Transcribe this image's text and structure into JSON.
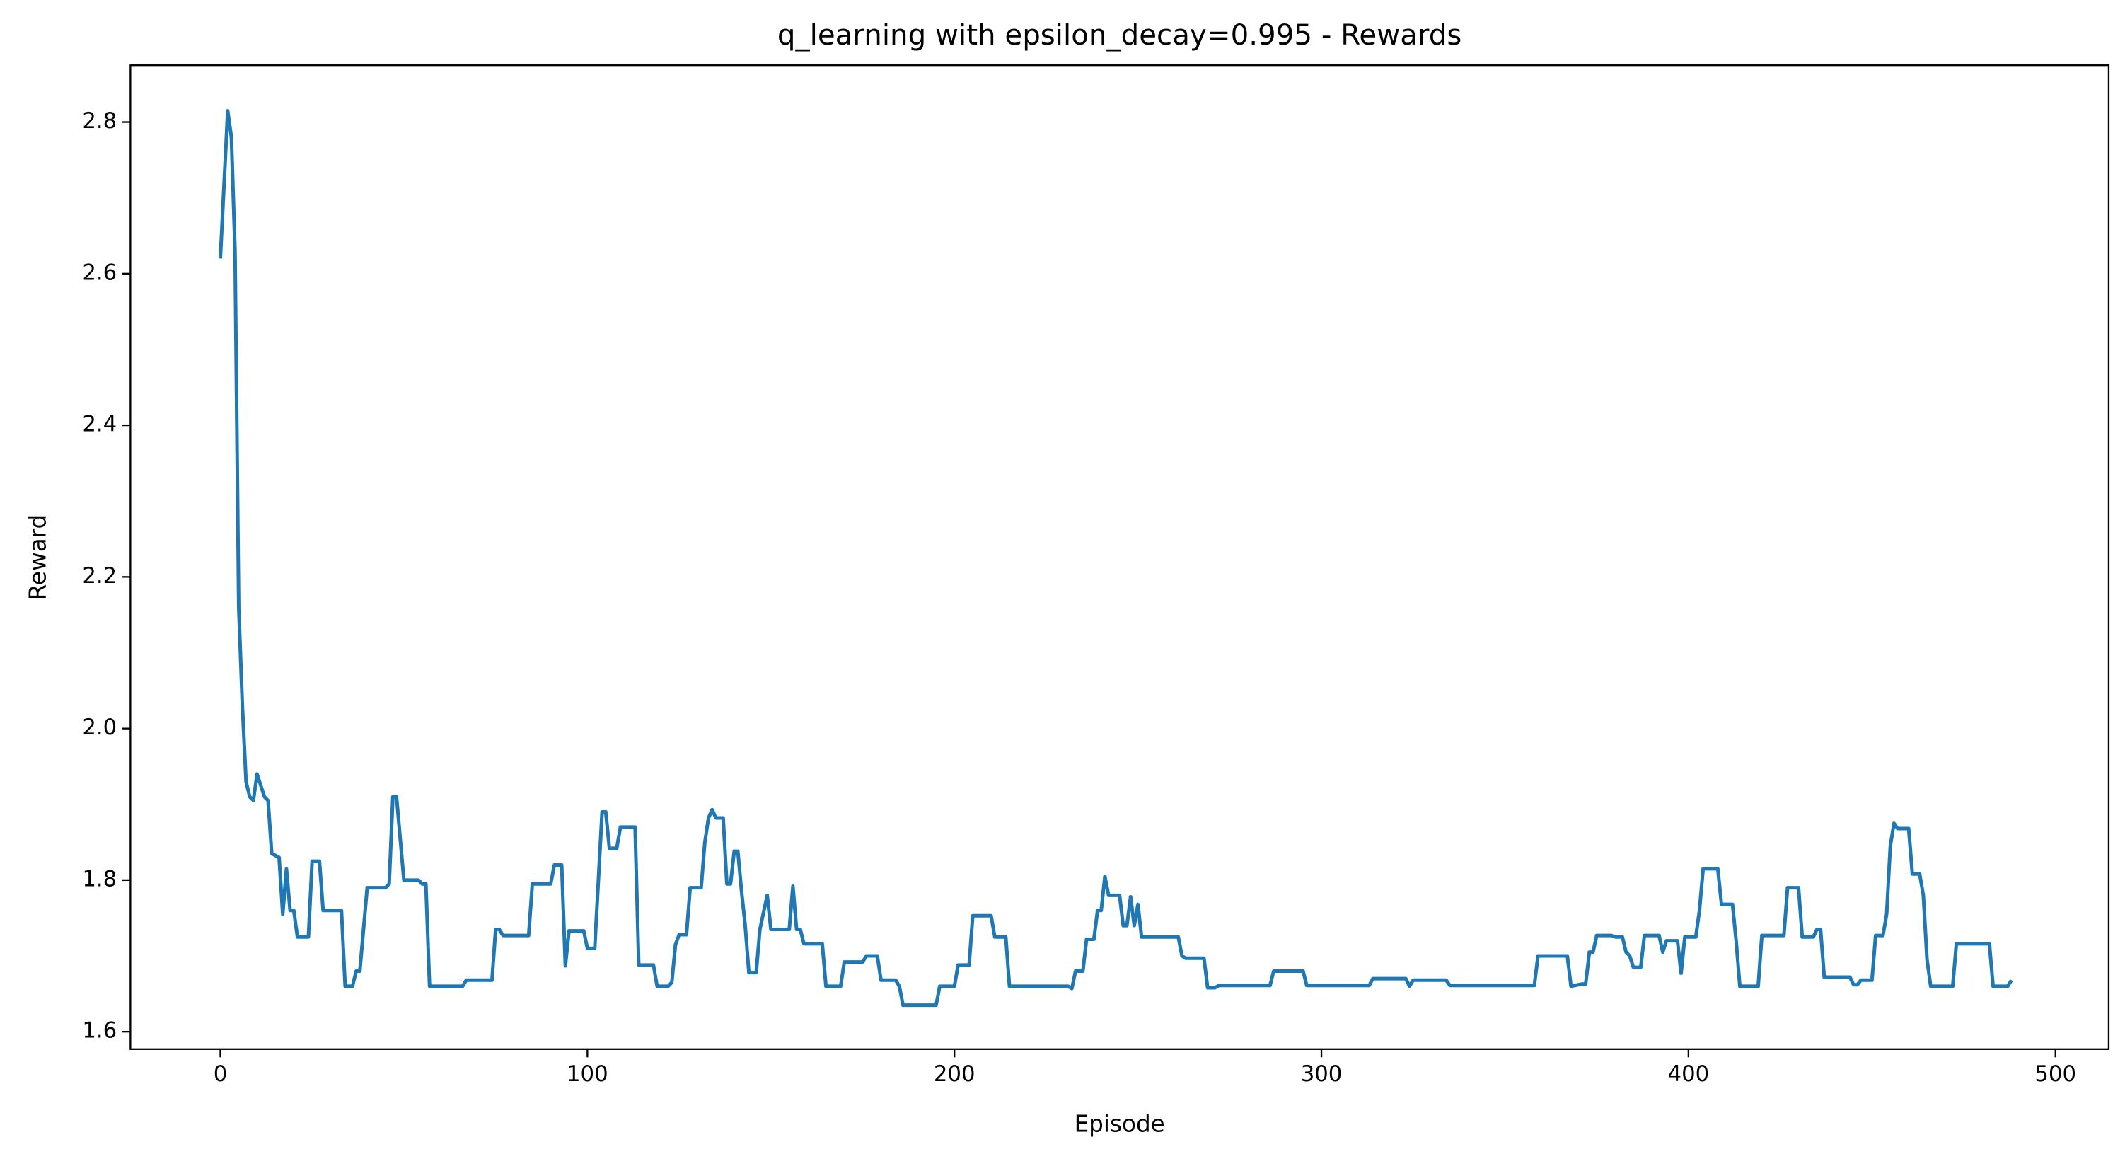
{
  "chart_data": {
    "type": "line",
    "title": "q_learning with epsilon_decay=0.995 - Rewards",
    "xlabel": "Episode",
    "ylabel": "Reward",
    "xlim": [
      -24.5,
      514.5
    ],
    "ylim": [
      1.577,
      2.875
    ],
    "xticks": [
      0,
      100,
      200,
      300,
      400,
      500
    ],
    "yticks": [
      1.6,
      1.8,
      {
        "value": 2,
        "label": "2.0"
      },
      2.2,
      2.4,
      2.6,
      2.8
    ],
    "color": "#1f77b4",
    "x": [
      0,
      2,
      3,
      4,
      5,
      6,
      7,
      8,
      9,
      10,
      11,
      12,
      13,
      14,
      16,
      17,
      18,
      19,
      20,
      21,
      24,
      25,
      27,
      28,
      33,
      34,
      36,
      37,
      38,
      40,
      45,
      46,
      47,
      48,
      50,
      54,
      55,
      56,
      57,
      66,
      67,
      74,
      75,
      76,
      77,
      84,
      85,
      90,
      91,
      93,
      94,
      95,
      99,
      100,
      102,
      104,
      105,
      106,
      108,
      109,
      113,
      114,
      118,
      119,
      122,
      123,
      124,
      125,
      127,
      128,
      131,
      132,
      133,
      134,
      135,
      137,
      138,
      139,
      140,
      141,
      142,
      143,
      144,
      146,
      147,
      149,
      150,
      155,
      156,
      157,
      158,
      159,
      164,
      165,
      169,
      170,
      175,
      176,
      179,
      180,
      184,
      185,
      186,
      195,
      196,
      200,
      201,
      204,
      205,
      210,
      211,
      214,
      215,
      231,
      232,
      233,
      235,
      236,
      238,
      239,
      240,
      241,
      242,
      245,
      246,
      247,
      248,
      249,
      250,
      251,
      261,
      262,
      263,
      268,
      269,
      271,
      272,
      286,
      287,
      295,
      296,
      313,
      314,
      323,
      324,
      325,
      334,
      335,
      358,
      359,
      367,
      368,
      371,
      372,
      373,
      374,
      375,
      379,
      380,
      382,
      383,
      384,
      385,
      387,
      388,
      392,
      393,
      394,
      397,
      398,
      399,
      402,
      403,
      404,
      408,
      409,
      412,
      413,
      414,
      419,
      420,
      426,
      427,
      430,
      431,
      434,
      435,
      436,
      437,
      444,
      445,
      446,
      447,
      450,
      451,
      453,
      454,
      455,
      456,
      457,
      460,
      461,
      463,
      464,
      465,
      466,
      472,
      473,
      482,
      483,
      487,
      488
    ],
    "values": [
      2.62,
      2.815,
      2.78,
      2.63,
      2.16,
      2.03,
      1.93,
      1.91,
      1.905,
      1.94,
      1.925,
      1.91,
      1.905,
      1.835,
      1.83,
      1.755,
      1.815,
      1.76,
      1.76,
      1.725,
      1.725,
      1.825,
      1.825,
      1.76,
      1.76,
      1.66,
      1.66,
      1.68,
      1.68,
      1.79,
      1.79,
      1.795,
      1.91,
      1.91,
      1.8,
      1.8,
      1.795,
      1.795,
      1.66,
      1.66,
      1.668,
      1.668,
      1.735,
      1.735,
      1.727,
      1.727,
      1.795,
      1.795,
      1.82,
      1.82,
      1.687,
      1.733,
      1.733,
      1.71,
      1.71,
      1.89,
      1.89,
      1.842,
      1.842,
      1.87,
      1.87,
      1.688,
      1.688,
      1.66,
      1.66,
      1.665,
      1.715,
      1.728,
      1.728,
      1.79,
      1.79,
      1.85,
      1.882,
      1.893,
      1.882,
      1.882,
      1.795,
      1.795,
      1.838,
      1.838,
      1.785,
      1.74,
      1.678,
      1.678,
      1.735,
      1.78,
      1.735,
      1.735,
      1.792,
      1.735,
      1.735,
      1.716,
      1.716,
      1.66,
      1.66,
      1.692,
      1.692,
      1.7,
      1.7,
      1.668,
      1.668,
      1.66,
      1.635,
      1.635,
      1.66,
      1.66,
      1.688,
      1.688,
      1.753,
      1.753,
      1.725,
      1.725,
      1.66,
      1.66,
      1.657,
      1.68,
      1.68,
      1.722,
      1.722,
      1.76,
      1.76,
      1.805,
      1.78,
      1.78,
      1.74,
      1.74,
      1.778,
      1.74,
      1.768,
      1.725,
      1.725,
      1.7,
      1.697,
      1.697,
      1.658,
      1.658,
      1.661,
      1.661,
      1.68,
      1.68,
      1.661,
      1.661,
      1.67,
      1.67,
      1.66,
      1.668,
      1.668,
      1.661,
      1.661,
      1.7,
      1.7,
      1.66,
      1.663,
      1.663,
      1.705,
      1.705,
      1.727,
      1.727,
      1.725,
      1.725,
      1.705,
      1.7,
      1.685,
      1.685,
      1.727,
      1.727,
      1.705,
      1.72,
      1.72,
      1.677,
      1.725,
      1.725,
      1.76,
      1.815,
      1.815,
      1.768,
      1.768,
      1.72,
      1.66,
      1.66,
      1.727,
      1.727,
      1.79,
      1.79,
      1.725,
      1.725,
      1.735,
      1.735,
      1.672,
      1.672,
      1.662,
      1.662,
      1.668,
      1.668,
      1.727,
      1.727,
      1.755,
      1.845,
      1.875,
      1.868,
      1.868,
      1.808,
      1.808,
      1.78,
      1.695,
      1.66,
      1.66,
      1.716,
      1.716,
      1.66,
      1.66,
      1.668
    ]
  }
}
